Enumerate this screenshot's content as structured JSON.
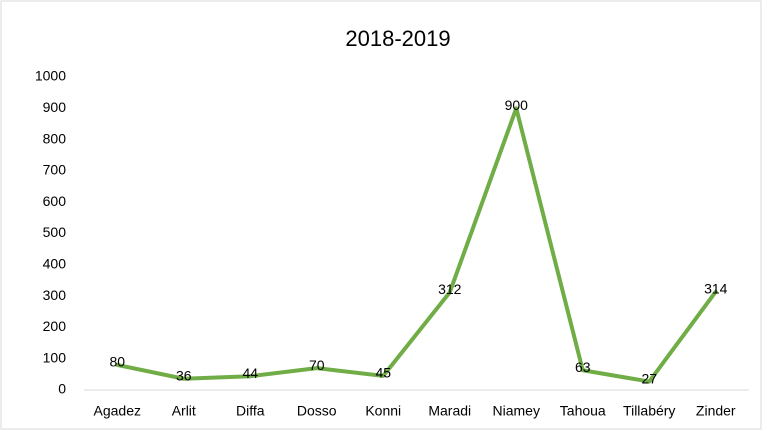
{
  "chart_data": {
    "type": "line",
    "title": "2018-2019",
    "categories": [
      "Agadez",
      "Arlit",
      "Diffa",
      "Dosso",
      "Konni",
      "Maradi",
      "Niamey",
      "Tahoua",
      "Tillabéry",
      "Zinder"
    ],
    "values": [
      80,
      36,
      44,
      70,
      45,
      312,
      900,
      63,
      27,
      314
    ],
    "color": "#70ad47",
    "ylim": [
      0,
      1000
    ],
    "yticks": [
      0,
      100,
      200,
      300,
      400,
      500,
      600,
      700,
      800,
      900,
      1000
    ],
    "grid": false
  }
}
